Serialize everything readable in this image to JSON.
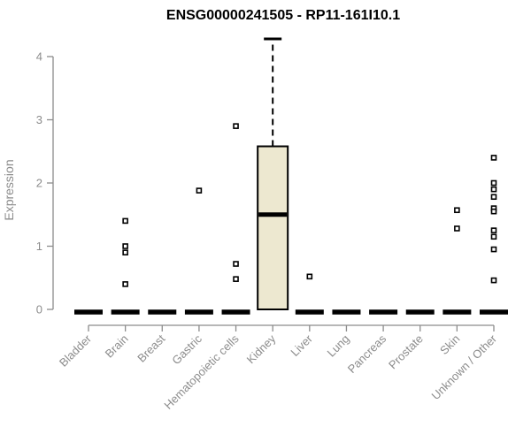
{
  "chart_data": {
    "type": "boxplot",
    "title": "ENSG00000241505 - RP11-161I10.1",
    "ylabel": "Expression",
    "xlabel": "",
    "ylim": [
      0,
      4.3
    ],
    "yticks": [
      0,
      1,
      2,
      3,
      4
    ],
    "grid": false,
    "legend": null,
    "categories": [
      "Bladder",
      "Brain",
      "Breast",
      "Gastric",
      "Hematopoietic cells",
      "Kidney",
      "Liver",
      "Lung",
      "Pancreas",
      "Prostate",
      "Skin",
      "Unknown / Other"
    ],
    "boxes": [
      {
        "category": "Bladder",
        "q1": 0,
        "median": 0,
        "q3": 0,
        "whisker_low": 0,
        "whisker_high": 0,
        "outliers": []
      },
      {
        "category": "Brain",
        "q1": 0,
        "median": 0,
        "q3": 0,
        "whisker_low": 0,
        "whisker_high": 0,
        "outliers": [
          1.4,
          1.0,
          0.9,
          0.4
        ]
      },
      {
        "category": "Breast",
        "q1": 0,
        "median": 0,
        "q3": 0,
        "whisker_low": 0,
        "whisker_high": 0,
        "outliers": []
      },
      {
        "category": "Gastric",
        "q1": 0,
        "median": 0,
        "q3": 0,
        "whisker_low": 0,
        "whisker_high": 0,
        "outliers": [
          1.88
        ]
      },
      {
        "category": "Hematopoietic cells",
        "q1": 0,
        "median": 0,
        "q3": 0,
        "whisker_low": 0,
        "whisker_high": 0,
        "outliers": [
          2.9,
          0.72,
          0.48
        ]
      },
      {
        "category": "Kidney",
        "q1": 0,
        "median": 1.5,
        "q3": 2.58,
        "whisker_low": 0,
        "whisker_high": 4.28,
        "outliers": []
      },
      {
        "category": "Liver",
        "q1": 0,
        "median": 0,
        "q3": 0,
        "whisker_low": 0,
        "whisker_high": 0,
        "outliers": [
          0.52
        ]
      },
      {
        "category": "Lung",
        "q1": 0,
        "median": 0,
        "q3": 0,
        "whisker_low": 0,
        "whisker_high": 0,
        "outliers": []
      },
      {
        "category": "Pancreas",
        "q1": 0,
        "median": 0,
        "q3": 0,
        "whisker_low": 0,
        "whisker_high": 0,
        "outliers": []
      },
      {
        "category": "Prostate",
        "q1": 0,
        "median": 0,
        "q3": 0,
        "whisker_low": 0,
        "whisker_high": 0,
        "outliers": []
      },
      {
        "category": "Skin",
        "q1": 0,
        "median": 0,
        "q3": 0,
        "whisker_low": 0,
        "whisker_high": 0,
        "outliers": [
          1.57,
          1.28
        ]
      },
      {
        "category": "Unknown / Other",
        "q1": 0,
        "median": 0,
        "q3": 0,
        "whisker_low": 0,
        "whisker_high": 0,
        "outliers": [
          2.4,
          2.0,
          1.9,
          1.78,
          1.6,
          1.55,
          1.25,
          1.15,
          0.95,
          0.46
        ]
      }
    ],
    "colors": {
      "box_fill": "#EDE8D0",
      "box_border": "#000000",
      "median": "#000000",
      "whisker": "#000000",
      "axis": "#8C8C8C",
      "tick_label": "#8C8C8C",
      "title": "#000000",
      "outlier_fill": "#FFFFFF",
      "outlier_border": "#000000"
    }
  }
}
